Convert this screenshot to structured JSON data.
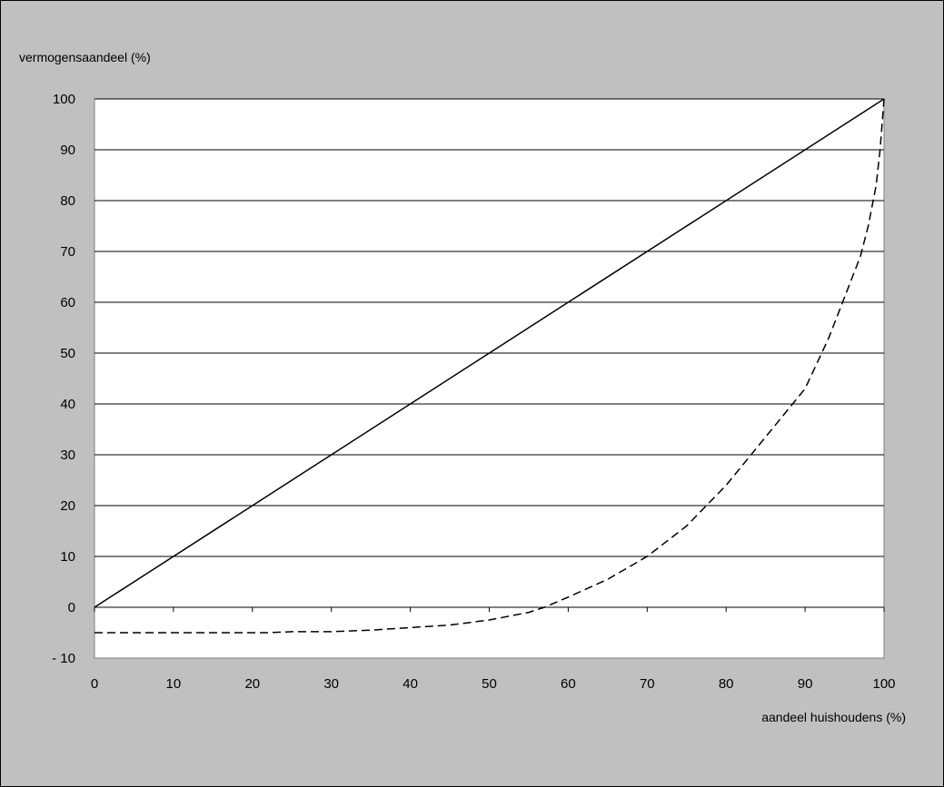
{
  "chart_data": {
    "type": "line",
    "title": "",
    "ylabel": "vermogensaandeel (%)",
    "xlabel": "aandeel huishoudens (%)",
    "xlim": [
      0,
      100
    ],
    "ylim": [
      -10,
      100
    ],
    "x_ticks": [
      0,
      10,
      20,
      30,
      40,
      50,
      60,
      70,
      80,
      90,
      100
    ],
    "y_ticks": [
      -10,
      0,
      10,
      20,
      30,
      40,
      50,
      60,
      70,
      80,
      90,
      100
    ],
    "x_tick_labels": [
      "0",
      "10",
      "20",
      "30",
      "40",
      "50",
      "60",
      "70",
      "80",
      "90",
      "100"
    ],
    "y_tick_labels": [
      "- 10",
      "0",
      "10",
      "20",
      "30",
      "40",
      "50",
      "60",
      "70",
      "80",
      "90",
      "100"
    ],
    "grid": "horizontal",
    "legend": "none",
    "colors": {
      "background": "#c0c0c0",
      "plot_area": "#ffffff",
      "line": "#000000"
    },
    "series": [
      {
        "style": "solid",
        "x": [
          0,
          100
        ],
        "y": [
          0,
          100
        ]
      },
      {
        "style": "dashed",
        "x": [
          0,
          10,
          20,
          22,
          25,
          30,
          35,
          40,
          45,
          50,
          55,
          57,
          60,
          65,
          70,
          75,
          80,
          85,
          90,
          93,
          95,
          97,
          98,
          99,
          99.5,
          100
        ],
        "y": [
          -5,
          -5,
          -5,
          -5,
          -4.8,
          -4.8,
          -4.5,
          -4,
          -3.5,
          -2.5,
          -1,
          0,
          2,
          5.5,
          10,
          16,
          24,
          33.5,
          43,
          53,
          61,
          69,
          75,
          83,
          90,
          100
        ]
      }
    ]
  }
}
